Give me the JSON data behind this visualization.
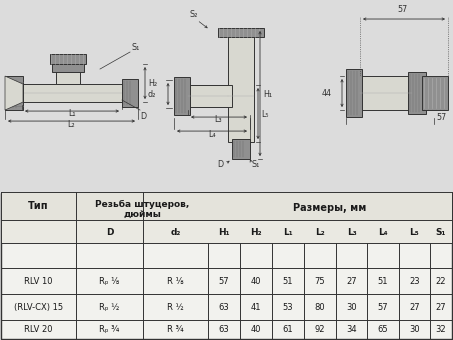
{
  "bg_top": "#dcdcdc",
  "bg_table": "#f2f2ee",
  "border_color": "#444444",
  "text_color": "#1a1a1a",
  "line_color": "#333333",
  "valve_fill": "#b8b8b8",
  "valve_dark": "#909090",
  "valve_light": "#d8d8d0",
  "title_rezba": "Резьба штуцеров,",
  "title_rezba2": "дюймы",
  "title_razmery": "Размеры, мм",
  "col_type": "Тип",
  "rows": [
    {
      "type": "RLV 10",
      "D_text": "Rₚ ⅛",
      "d2_text": "R ⅛",
      "vals": [
        "57",
        "40",
        "51",
        "75",
        "27",
        "51",
        "23",
        "22"
      ]
    },
    {
      "type": "(RLV-CX) 15",
      "D_text": "Rₚ ½",
      "d2_text": "R ½",
      "vals": [
        "63",
        "41",
        "53",
        "80",
        "30",
        "57",
        "27",
        "27"
      ]
    },
    {
      "type": "RLV 20",
      "D_text": "Rₚ ¾",
      "d2_text": "R ¾",
      "vals": [
        "63",
        "40",
        "61",
        "92",
        "34",
        "65",
        "30",
        "32"
      ]
    }
  ],
  "sub_headers": [
    "D",
    "d₂",
    "H₁",
    "H₂",
    "L₁",
    "L₂",
    "L₃",
    "L₄",
    "L₅",
    "S₁"
  ]
}
